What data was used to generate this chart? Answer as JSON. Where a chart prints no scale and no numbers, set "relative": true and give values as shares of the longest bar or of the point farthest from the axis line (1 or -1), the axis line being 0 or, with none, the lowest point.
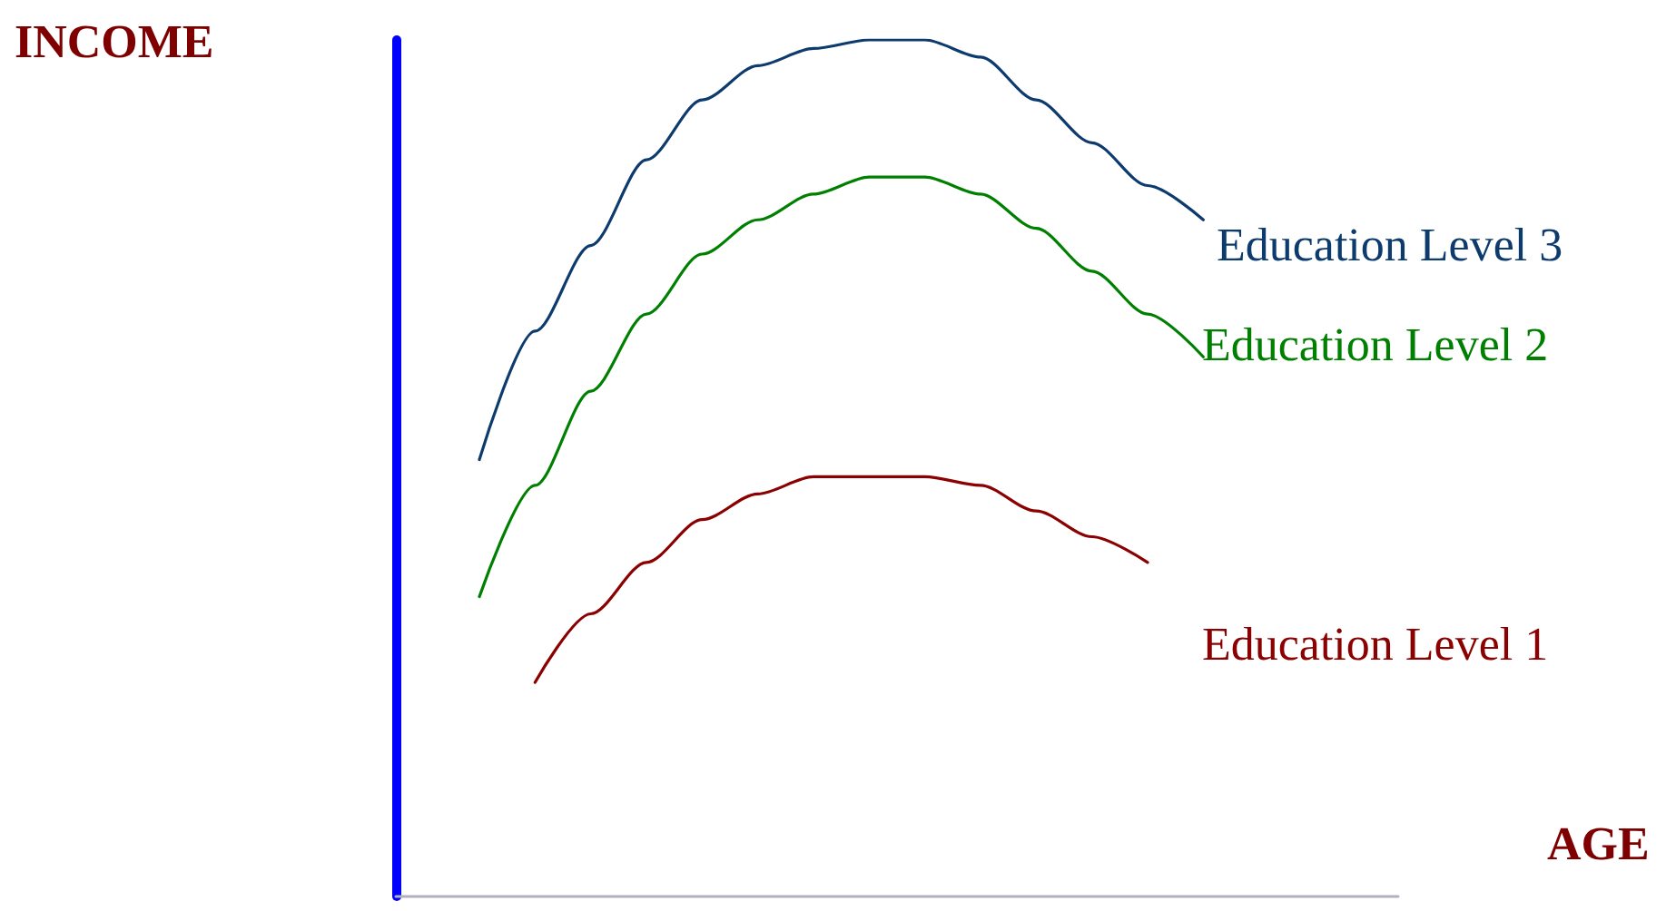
{
  "chart_data": {
    "type": "line",
    "relative": true,
    "ylabel": "INCOME",
    "xlabel": "AGE",
    "legend": false,
    "grid": false,
    "marker": "none",
    "line_style": "solid",
    "categories": [
      null,
      null,
      null,
      null,
      null,
      null,
      null,
      null,
      null,
      null,
      null,
      null,
      null,
      null,
      null,
      null,
      null,
      null
    ],
    "series": [
      {
        "name": "Education Level 3",
        "color": "#0d3b6e",
        "values": [
          null,
          0.51,
          0.66,
          0.76,
          0.86,
          0.93,
          0.97,
          0.99,
          1.0,
          1.0,
          0.98,
          0.93,
          0.88,
          0.83,
          0.79,
          null,
          null,
          null
        ]
      },
      {
        "name": "Education Level 2",
        "color": "#008000",
        "values": [
          null,
          0.35,
          0.48,
          0.59,
          0.68,
          0.75,
          0.79,
          0.82,
          0.84,
          0.84,
          0.82,
          0.78,
          0.73,
          0.68,
          0.63,
          null,
          null,
          null
        ]
      },
      {
        "name": "Education Level 1",
        "color": "#8b0000",
        "values": [
          null,
          null,
          0.25,
          0.33,
          0.39,
          0.44,
          0.47,
          0.49,
          0.49,
          0.49,
          0.48,
          0.45,
          0.42,
          0.39,
          null,
          null,
          null,
          null
        ]
      }
    ]
  }
}
